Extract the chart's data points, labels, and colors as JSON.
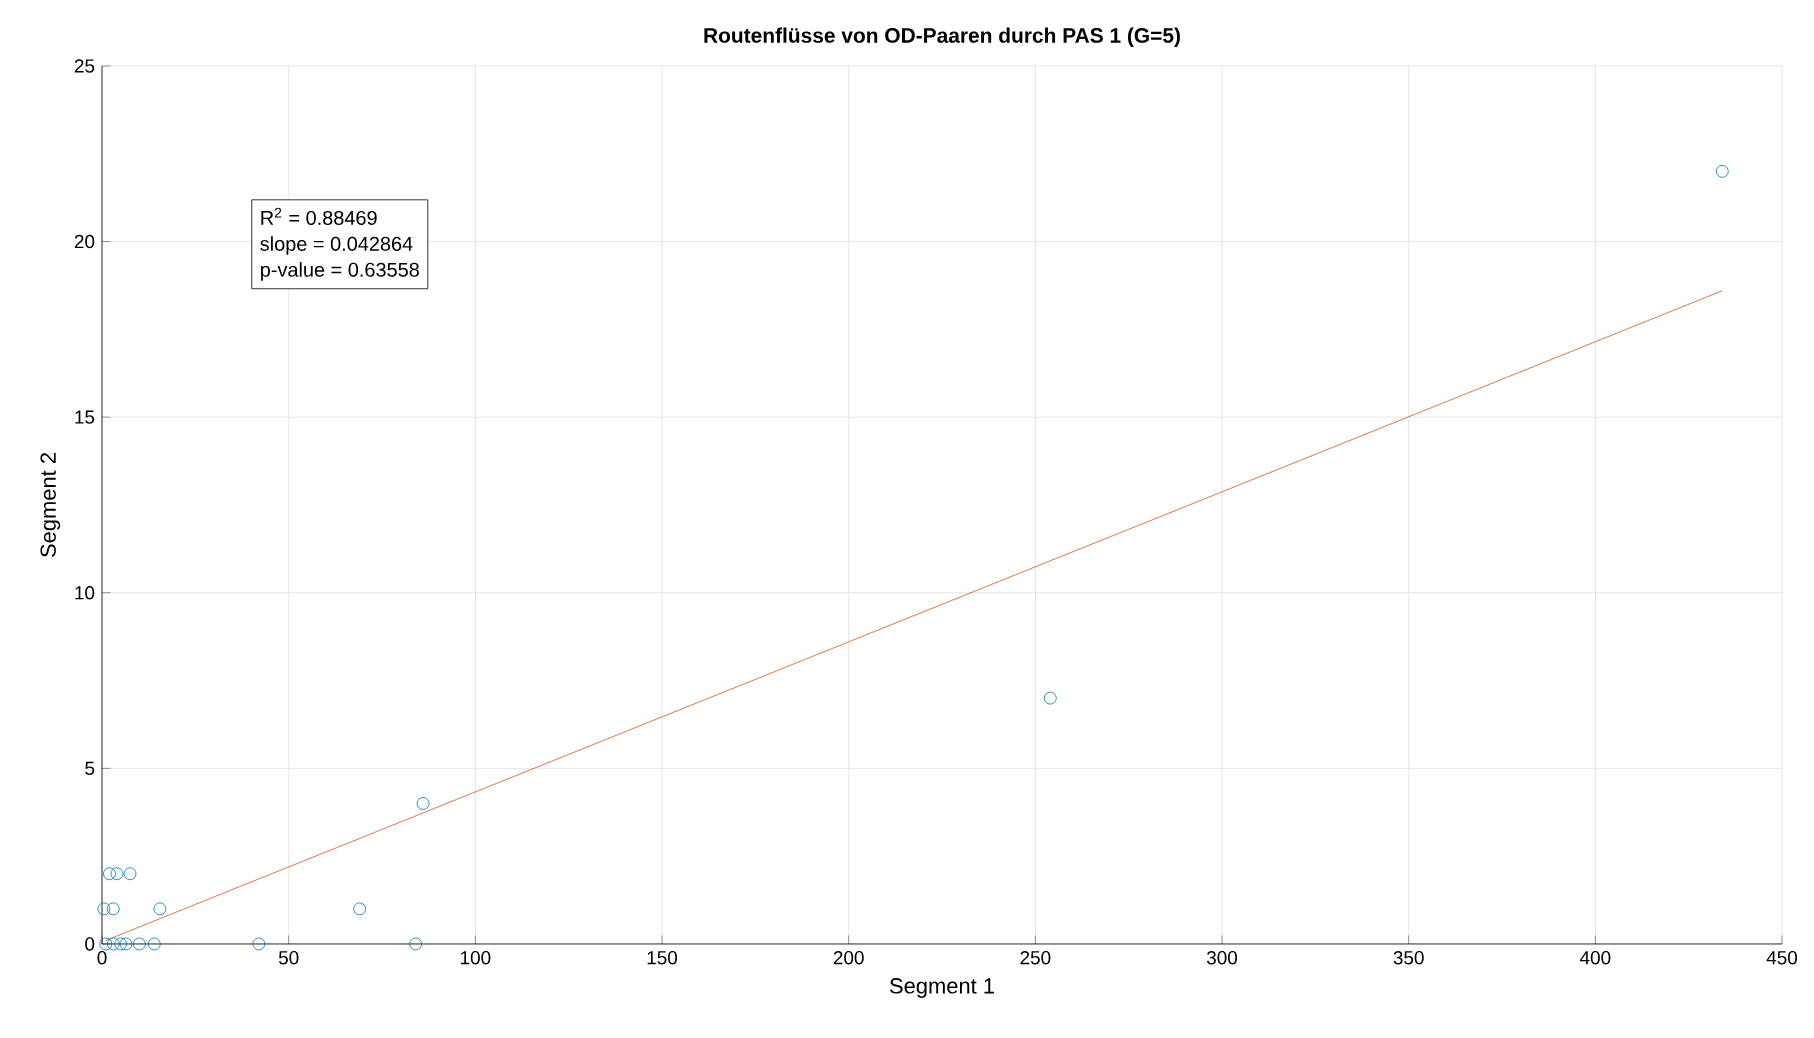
{
  "chart_data": {
    "type": "scatter",
    "title": "Routenflüsse von OD-Paaren durch PAS 1 (G=5)",
    "xlabel": "Segment 1",
    "ylabel": "Segment 2",
    "series": [
      {
        "color": "#0072bd",
        "marker": "circle",
        "x": [
          434,
          254,
          86,
          69,
          84,
          42,
          15.5,
          14,
          10,
          6.4,
          5,
          3,
          1,
          0.5,
          3,
          2,
          4,
          7.5
        ],
        "values": [
          22,
          7,
          4,
          1,
          0,
          0,
          1,
          0,
          0,
          0,
          0,
          0,
          0,
          1,
          1,
          2,
          2,
          2
        ]
      },
      {
        "type": "line",
        "color": "#d95319",
        "marker": "none",
        "line_style": "solid",
        "x": [
          1,
          434
        ],
        "values": [
          0.1,
          18.6
        ]
      }
    ],
    "annotations": [
      {
        "text": "R$^{2}$ = 0.88469"
      },
      {
        "text": "slope  = 0.042864"
      },
      {
        "text": "p-value = 0.63558"
      }
    ],
    "xlim": [
      0,
      450
    ],
    "ylim": [
      0,
      25
    ],
    "xticks": [
      0,
      50,
      100,
      150,
      200,
      250,
      300,
      350,
      400,
      450
    ],
    "yticks": [
      0,
      5,
      10,
      15,
      20,
      25
    ],
    "grid": true
  }
}
